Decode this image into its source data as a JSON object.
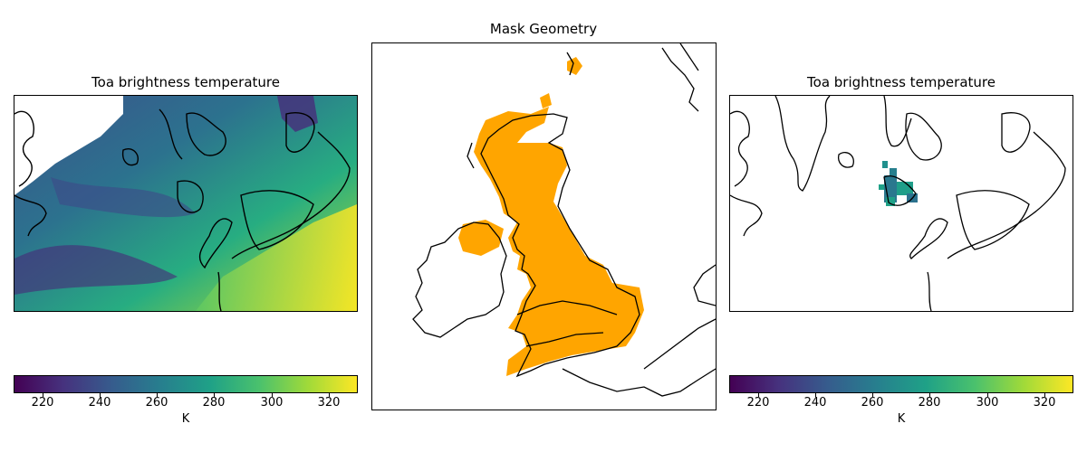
{
  "panels": [
    {
      "title": "Toa brightness temperature"
    },
    {
      "title": "Mask Geometry"
    },
    {
      "title": "Toa brightness temperature"
    }
  ],
  "colorbar": {
    "unit": "K",
    "range": [
      210,
      330
    ],
    "ticks": [
      "220",
      "240",
      "260",
      "280",
      "300",
      "320"
    ],
    "colormap": "viridis",
    "stops": [
      "#440154",
      "#46327e",
      "#365c8d",
      "#277f8e",
      "#1fa187",
      "#4ac16d",
      "#a0da39",
      "#fde725"
    ]
  },
  "colors": {
    "mask_fill": "#ffa500",
    "coastline": "#000000"
  }
}
